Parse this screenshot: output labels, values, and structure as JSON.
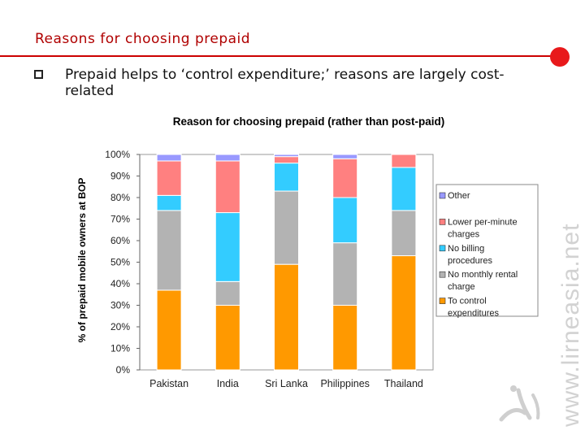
{
  "slide": {
    "title": "Reasons for choosing prepaid",
    "bullet": "Prepaid helps to ‘control expenditure;’ reasons are largely cost-related",
    "watermark": "www.lirneasia.net"
  },
  "colors": {
    "title": "#b00000",
    "accent": "#e8191b"
  },
  "chart_data": {
    "type": "bar",
    "stacked": true,
    "title": "Reason for choosing prepaid (rather than post-paid)",
    "xlabel": "",
    "ylabel": "% of prepaid mobile owners at BOP",
    "ylim": [
      0,
      100
    ],
    "yticks": [
      "0%",
      "10%",
      "20%",
      "30%",
      "40%",
      "50%",
      "60%",
      "70%",
      "80%",
      "90%",
      "100%"
    ],
    "legend_position": "right",
    "categories": [
      "Pakistan",
      "India",
      "Sri Lanka",
      "Philippines",
      "Thailand"
    ],
    "series": [
      {
        "name": "To control expenditures",
        "color": "#ff9900",
        "values": [
          37,
          30,
          49,
          30,
          53
        ]
      },
      {
        "name": "No monthly rental charge",
        "color": "#b3b3b3",
        "values": [
          37,
          11,
          34,
          29,
          21
        ]
      },
      {
        "name": "No billing procedures",
        "color": "#33ccff",
        "values": [
          7,
          32,
          13,
          21,
          20
        ]
      },
      {
        "name": "Lower per-minute charges",
        "color": "#ff8080",
        "values": [
          16,
          24,
          3,
          18,
          6
        ]
      },
      {
        "name": "Other",
        "color": "#9999ff",
        "values": [
          3,
          3,
          1,
          2,
          0
        ]
      }
    ]
  }
}
